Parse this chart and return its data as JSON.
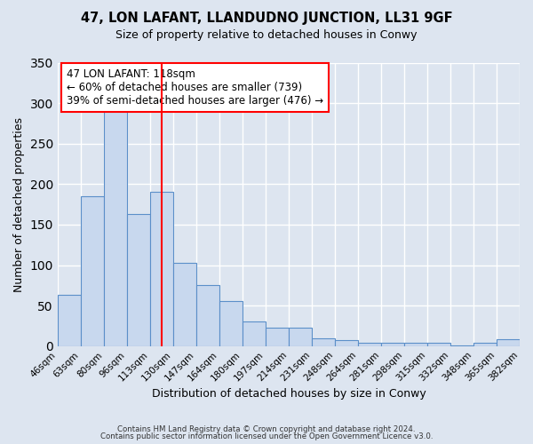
{
  "title": "47, LON LAFANT, LLANDUDNO JUNCTION, LL31 9GF",
  "subtitle": "Size of property relative to detached houses in Conwy",
  "xlabel": "Distribution of detached houses by size in Conwy",
  "ylabel": "Number of detached properties",
  "tick_labels": [
    "46sqm",
    "63sqm",
    "80sqm",
    "96sqm",
    "113sqm",
    "130sqm",
    "147sqm",
    "164sqm",
    "180sqm",
    "197sqm",
    "214sqm",
    "231sqm",
    "248sqm",
    "264sqm",
    "281sqm",
    "298sqm",
    "315sqm",
    "332sqm",
    "348sqm",
    "365sqm",
    "382sqm"
  ],
  "bar_values": [
    63,
    185,
    293,
    163,
    190,
    103,
    75,
    56,
    30,
    23,
    23,
    10,
    7,
    4,
    4,
    4,
    4,
    1,
    4,
    8
  ],
  "bar_color": "#c8d8ee",
  "bar_edge_color": "#5b8fc9",
  "ylim": [
    0,
    350
  ],
  "yticks": [
    0,
    50,
    100,
    150,
    200,
    250,
    300,
    350
  ],
  "vline_x": 4.5,
  "annotation_title": "47 LON LAFANT: 118sqm",
  "annotation_line1": "← 60% of detached houses are smaller (739)",
  "annotation_line2": "39% of semi-detached houses are larger (476) →",
  "footer1": "Contains HM Land Registry data © Crown copyright and database right 2024.",
  "footer2": "Contains public sector information licensed under the Open Government Licence v3.0.",
  "background_color": "#dde5f0",
  "plot_background": "#dde5f0"
}
